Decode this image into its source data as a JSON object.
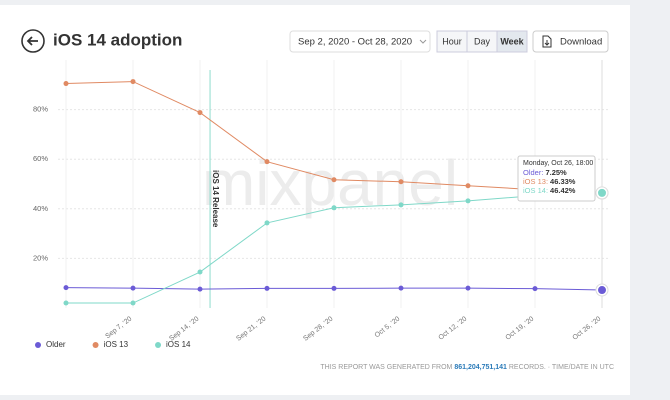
{
  "header": {
    "title": "iOS 14 adoption",
    "date_range": "Sep 2, 2020 - Oct 28, 2020",
    "buttons": [
      "Hour",
      "Day",
      "Week"
    ],
    "active_button": 2,
    "download": "Download"
  },
  "chart_data": {
    "type": "line",
    "categories": [
      null,
      "Sep 7, '20",
      "Sep 14, '20",
      "Sep 21, '20",
      "Sep 28, '20",
      "Oct 5, '20",
      "Oct 12, '20",
      "Oct 19, '20",
      "Oct 26, '20"
    ],
    "series": [
      {
        "name": "Older",
        "color": "#6b5bd6",
        "values": [
          8.2,
          8.0,
          7.6,
          7.9,
          7.9,
          8.0,
          8.0,
          7.8,
          7.25
        ],
        "value_labels": [
          null,
          null,
          null,
          null,
          null,
          null,
          null,
          null,
          "7.25%"
        ]
      },
      {
        "name": "iOS 13",
        "color": "#e08a63",
        "values": [
          90.5,
          91.3,
          78.8,
          59.0,
          51.7,
          50.9,
          49.3,
          47.7,
          46.33
        ],
        "value_labels": [
          null,
          null,
          null,
          null,
          null,
          null,
          null,
          null,
          "46.33%"
        ]
      },
      {
        "name": "iOS 14",
        "color": "#7fd8c8",
        "values": [
          2.0,
          2.0,
          14.5,
          34.3,
          40.4,
          41.6,
          43.2,
          45.3,
          46.42
        ],
        "value_labels": [
          null,
          null,
          null,
          null,
          null,
          null,
          null,
          null,
          "46.42%"
        ]
      }
    ],
    "ylim": [
      0,
      100
    ],
    "yticks": [
      {
        "value": 20,
        "label": "20%"
      },
      {
        "value": 40,
        "label": "40%"
      },
      {
        "value": 60,
        "label": "60%"
      },
      {
        "value": 80,
        "label": "80%"
      }
    ],
    "annotation": {
      "label": "iOS 14 Release",
      "x_index": 2.15
    },
    "tooltip": {
      "title": "Monday, Oct 26, 18:00",
      "index": 8
    },
    "watermark": "mixpanel"
  },
  "footer": {
    "prefix": "THIS REPORT WAS GENERATED FROM",
    "records": "861,204,751,141",
    "suffix": "RECORDS. · TIME/DATE IN UTC"
  }
}
